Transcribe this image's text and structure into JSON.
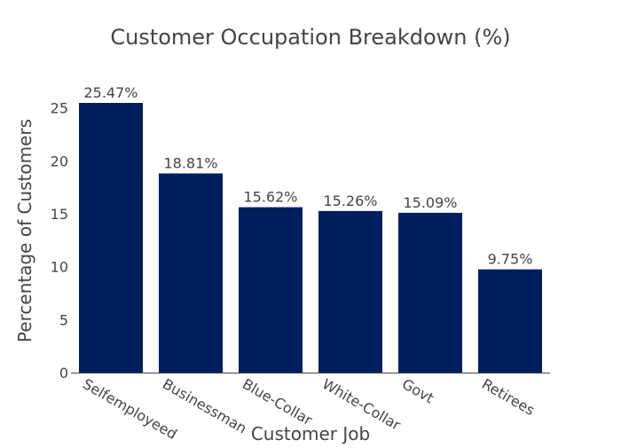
{
  "chart_data": {
    "type": "bar",
    "title": "Customer Occupation Breakdown (%)",
    "xlabel": "Customer Job",
    "ylabel": "Percentage of Customers",
    "categories": [
      "Selfemployeed",
      "Businessman",
      "Blue-Collar",
      "White-Collar",
      "Govt",
      "Retirees"
    ],
    "values": [
      25.47,
      18.81,
      15.62,
      15.26,
      15.09,
      9.75
    ],
    "data_labels": [
      "25.47%",
      "18.81%",
      "15.62%",
      "15.26%",
      "15.09%",
      "9.75%"
    ],
    "yticks": [
      0,
      5,
      10,
      15,
      20,
      25
    ],
    "ylim": [
      0,
      25.47
    ],
    "bar_color": "#001f5f",
    "grid": false,
    "legend": "none"
  }
}
